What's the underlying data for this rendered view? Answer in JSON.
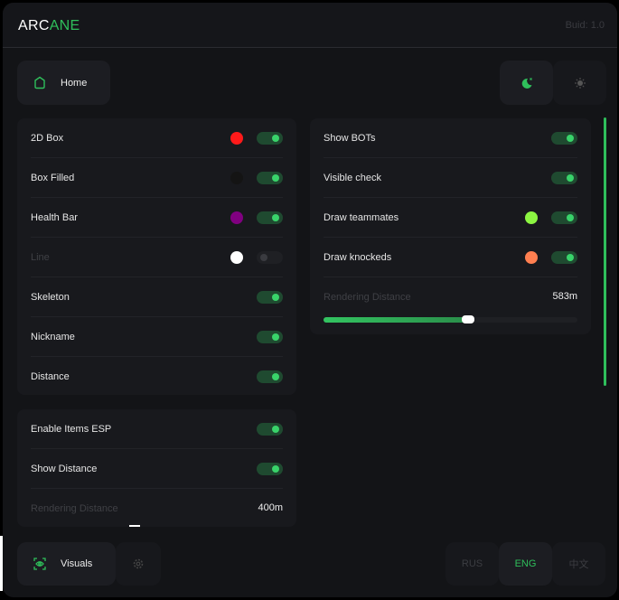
{
  "header": {
    "logo_a": "ARC",
    "logo_b": "ANE",
    "build": "Buid: 1.0"
  },
  "nav": {
    "home": "Home",
    "visuals": "Visuals"
  },
  "theme": {
    "dark_icon": "moon-icon",
    "light_icon": "sun-icon",
    "active": "dark"
  },
  "accent": "#2fbf5b",
  "esp": [
    {
      "label": "2D Box",
      "color": "#ff1a1a",
      "on": true
    },
    {
      "label": "Box Filled",
      "color": "#141414",
      "on": true
    },
    {
      "label": "Health Bar",
      "color": "#800080",
      "on": true
    },
    {
      "label": "Line",
      "color": "#ffffff",
      "on": false,
      "disabled": true
    },
    {
      "label": "Skeleton",
      "on": true
    },
    {
      "label": "Nickname",
      "on": true
    },
    {
      "label": "Distance",
      "on": true
    }
  ],
  "items": {
    "rows": [
      {
        "label": "Enable Items ESP",
        "on": true
      },
      {
        "label": "Show Distance",
        "on": true
      }
    ],
    "distance_label": "Rendering Distance",
    "distance_value": "400m"
  },
  "players": {
    "rows": [
      {
        "label": "Show BOTs",
        "on": true
      },
      {
        "label": "Visible check",
        "on": true
      },
      {
        "label": "Draw teammates",
        "color": "#8cf542",
        "on": true
      },
      {
        "label": "Draw knockeds",
        "color": "#ff7f50",
        "on": true
      }
    ],
    "distance_label": "Rendering Distance",
    "distance_value": "583m",
    "distance_fraction": 0.57
  },
  "languages": [
    {
      "label": "RUS"
    },
    {
      "label": "ENG",
      "active": true
    },
    {
      "label": "中文"
    }
  ]
}
